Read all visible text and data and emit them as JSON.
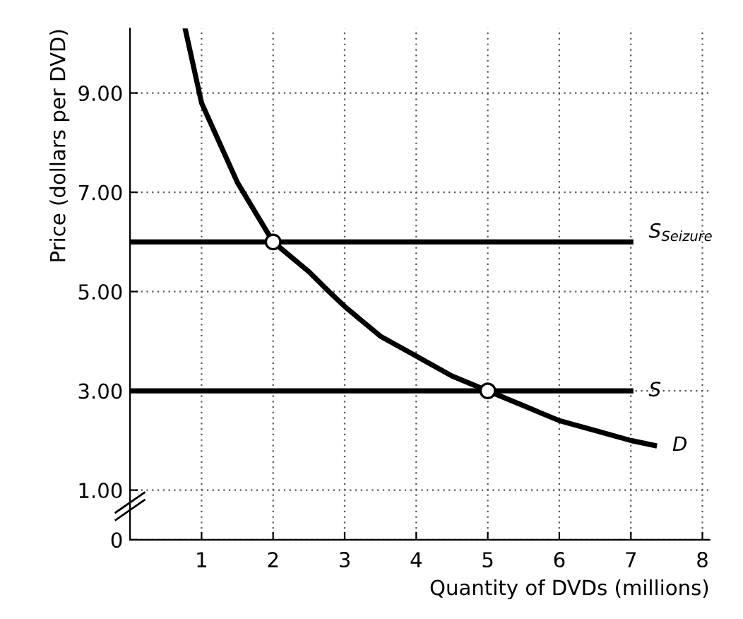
{
  "chart_data": {
    "type": "line",
    "xlabel": "Quantity of DVDs (millions)",
    "ylabel": "Price (dollars per DVD)",
    "series": [
      {
        "name": "S$_{Seizure}$",
        "color": "#000000",
        "x": [
          0,
          7
        ],
        "values": [
          6,
          6
        ]
      },
      {
        "name": "S",
        "color": "#000000",
        "x": [
          0,
          7
        ],
        "values": [
          3,
          3
        ]
      },
      {
        "name": "D",
        "color": "#000000",
        "x": [
          0.77,
          1,
          1.5,
          2,
          2.5,
          2.78,
          3,
          3.5,
          4,
          4.5,
          5,
          5.5,
          6,
          6.5,
          7,
          7.33
        ],
        "values": [
          10.3,
          8.8,
          7.2,
          6.0,
          5.4,
          5.0,
          4.7,
          4.1,
          3.7,
          3.3,
          3.0,
          2.7,
          2.4,
          2.2,
          2.0,
          1.9
        ]
      },
      {
        "type": "scatter",
        "color": "#000000",
        "x": [
          2,
          5
        ],
        "values": [
          6,
          3
        ]
      }
    ],
    "xlim": [
      0,
      8.1
    ],
    "ylim": [
      0,
      10.3
    ],
    "xticks": [
      1,
      2,
      3,
      4,
      5,
      6,
      7,
      8
    ],
    "yticks": [
      0,
      {
        "value": 1,
        "label": "1.00"
      },
      {
        "value": 3,
        "label": "3.00"
      },
      {
        "value": 5,
        "label": "5.00"
      },
      {
        "value": 7,
        "label": "7.00"
      },
      {
        "value": 9,
        "label": "9.00"
      }
    ],
    "grid": true,
    "legend": false
  }
}
